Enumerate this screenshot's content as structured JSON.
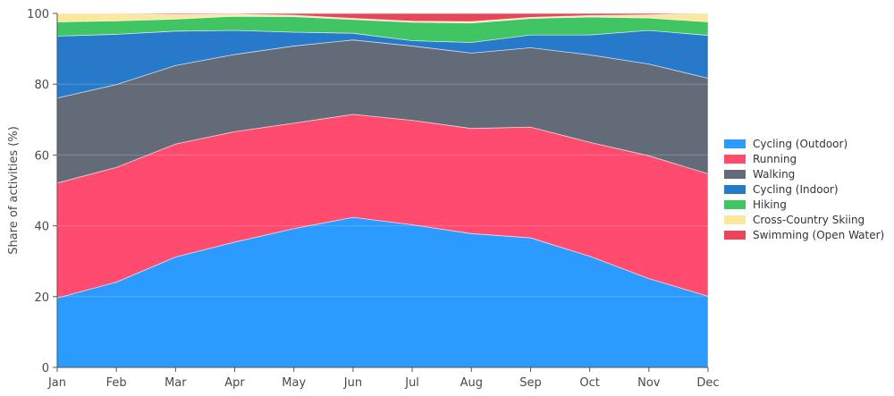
{
  "chart_data": {
    "type": "area",
    "stacked": true,
    "normalized_percent": true,
    "ylabel": "Share of activities (%)",
    "xlabel": "",
    "ylim": [
      0,
      100
    ],
    "yticks": [
      0,
      20,
      40,
      60,
      80,
      100
    ],
    "categories": [
      "Jan",
      "Feb",
      "Mar",
      "Apr",
      "May",
      "Jun",
      "Jul",
      "Aug",
      "Sep",
      "Oct",
      "Nov",
      "Dec"
    ],
    "grid": "horizontal",
    "legend_position": "right",
    "series": [
      {
        "name": "Cycling (Outdoor)",
        "color": "#2b9bff",
        "values": [
          19.6,
          24.1,
          31.2,
          35.4,
          39.2,
          42.4,
          40.3,
          37.8,
          36.6,
          31.4,
          25.1,
          20.1
        ]
      },
      {
        "name": "Running",
        "color": "#ff4b6e",
        "values": [
          32.5,
          32.4,
          31.9,
          31.2,
          29.8,
          29.1,
          29.5,
          29.7,
          31.3,
          32.2,
          34.7,
          34.6
        ]
      },
      {
        "name": "Walking",
        "color": "#636b78",
        "values": [
          24.0,
          23.4,
          22.2,
          21.8,
          21.8,
          21.0,
          21.0,
          21.3,
          22.4,
          24.7,
          25.9,
          27.0
        ]
      },
      {
        "name": "Cycling (Indoor)",
        "color": "#2779c9",
        "values": [
          17.5,
          14.2,
          9.7,
          6.8,
          3.9,
          1.9,
          1.5,
          3.0,
          3.6,
          5.6,
          9.5,
          12.1
        ]
      },
      {
        "name": "Hiking",
        "color": "#40c464",
        "values": [
          4.0,
          3.8,
          3.4,
          4.0,
          4.4,
          3.9,
          5.2,
          5.5,
          4.7,
          5.1,
          3.5,
          3.8
        ]
      },
      {
        "name": "Cross-Country Skiing",
        "color": "#fbe89a",
        "values": [
          2.4,
          2.0,
          1.3,
          0.6,
          0.4,
          0.3,
          0.3,
          0.4,
          0.3,
          0.4,
          0.9,
          2.4
        ]
      },
      {
        "name": "Swimming (Open Water)",
        "color": "#e8475a",
        "values": [
          0.0,
          0.1,
          0.3,
          0.2,
          0.5,
          1.4,
          2.2,
          2.3,
          1.1,
          0.6,
          0.4,
          0.0
        ]
      }
    ]
  }
}
